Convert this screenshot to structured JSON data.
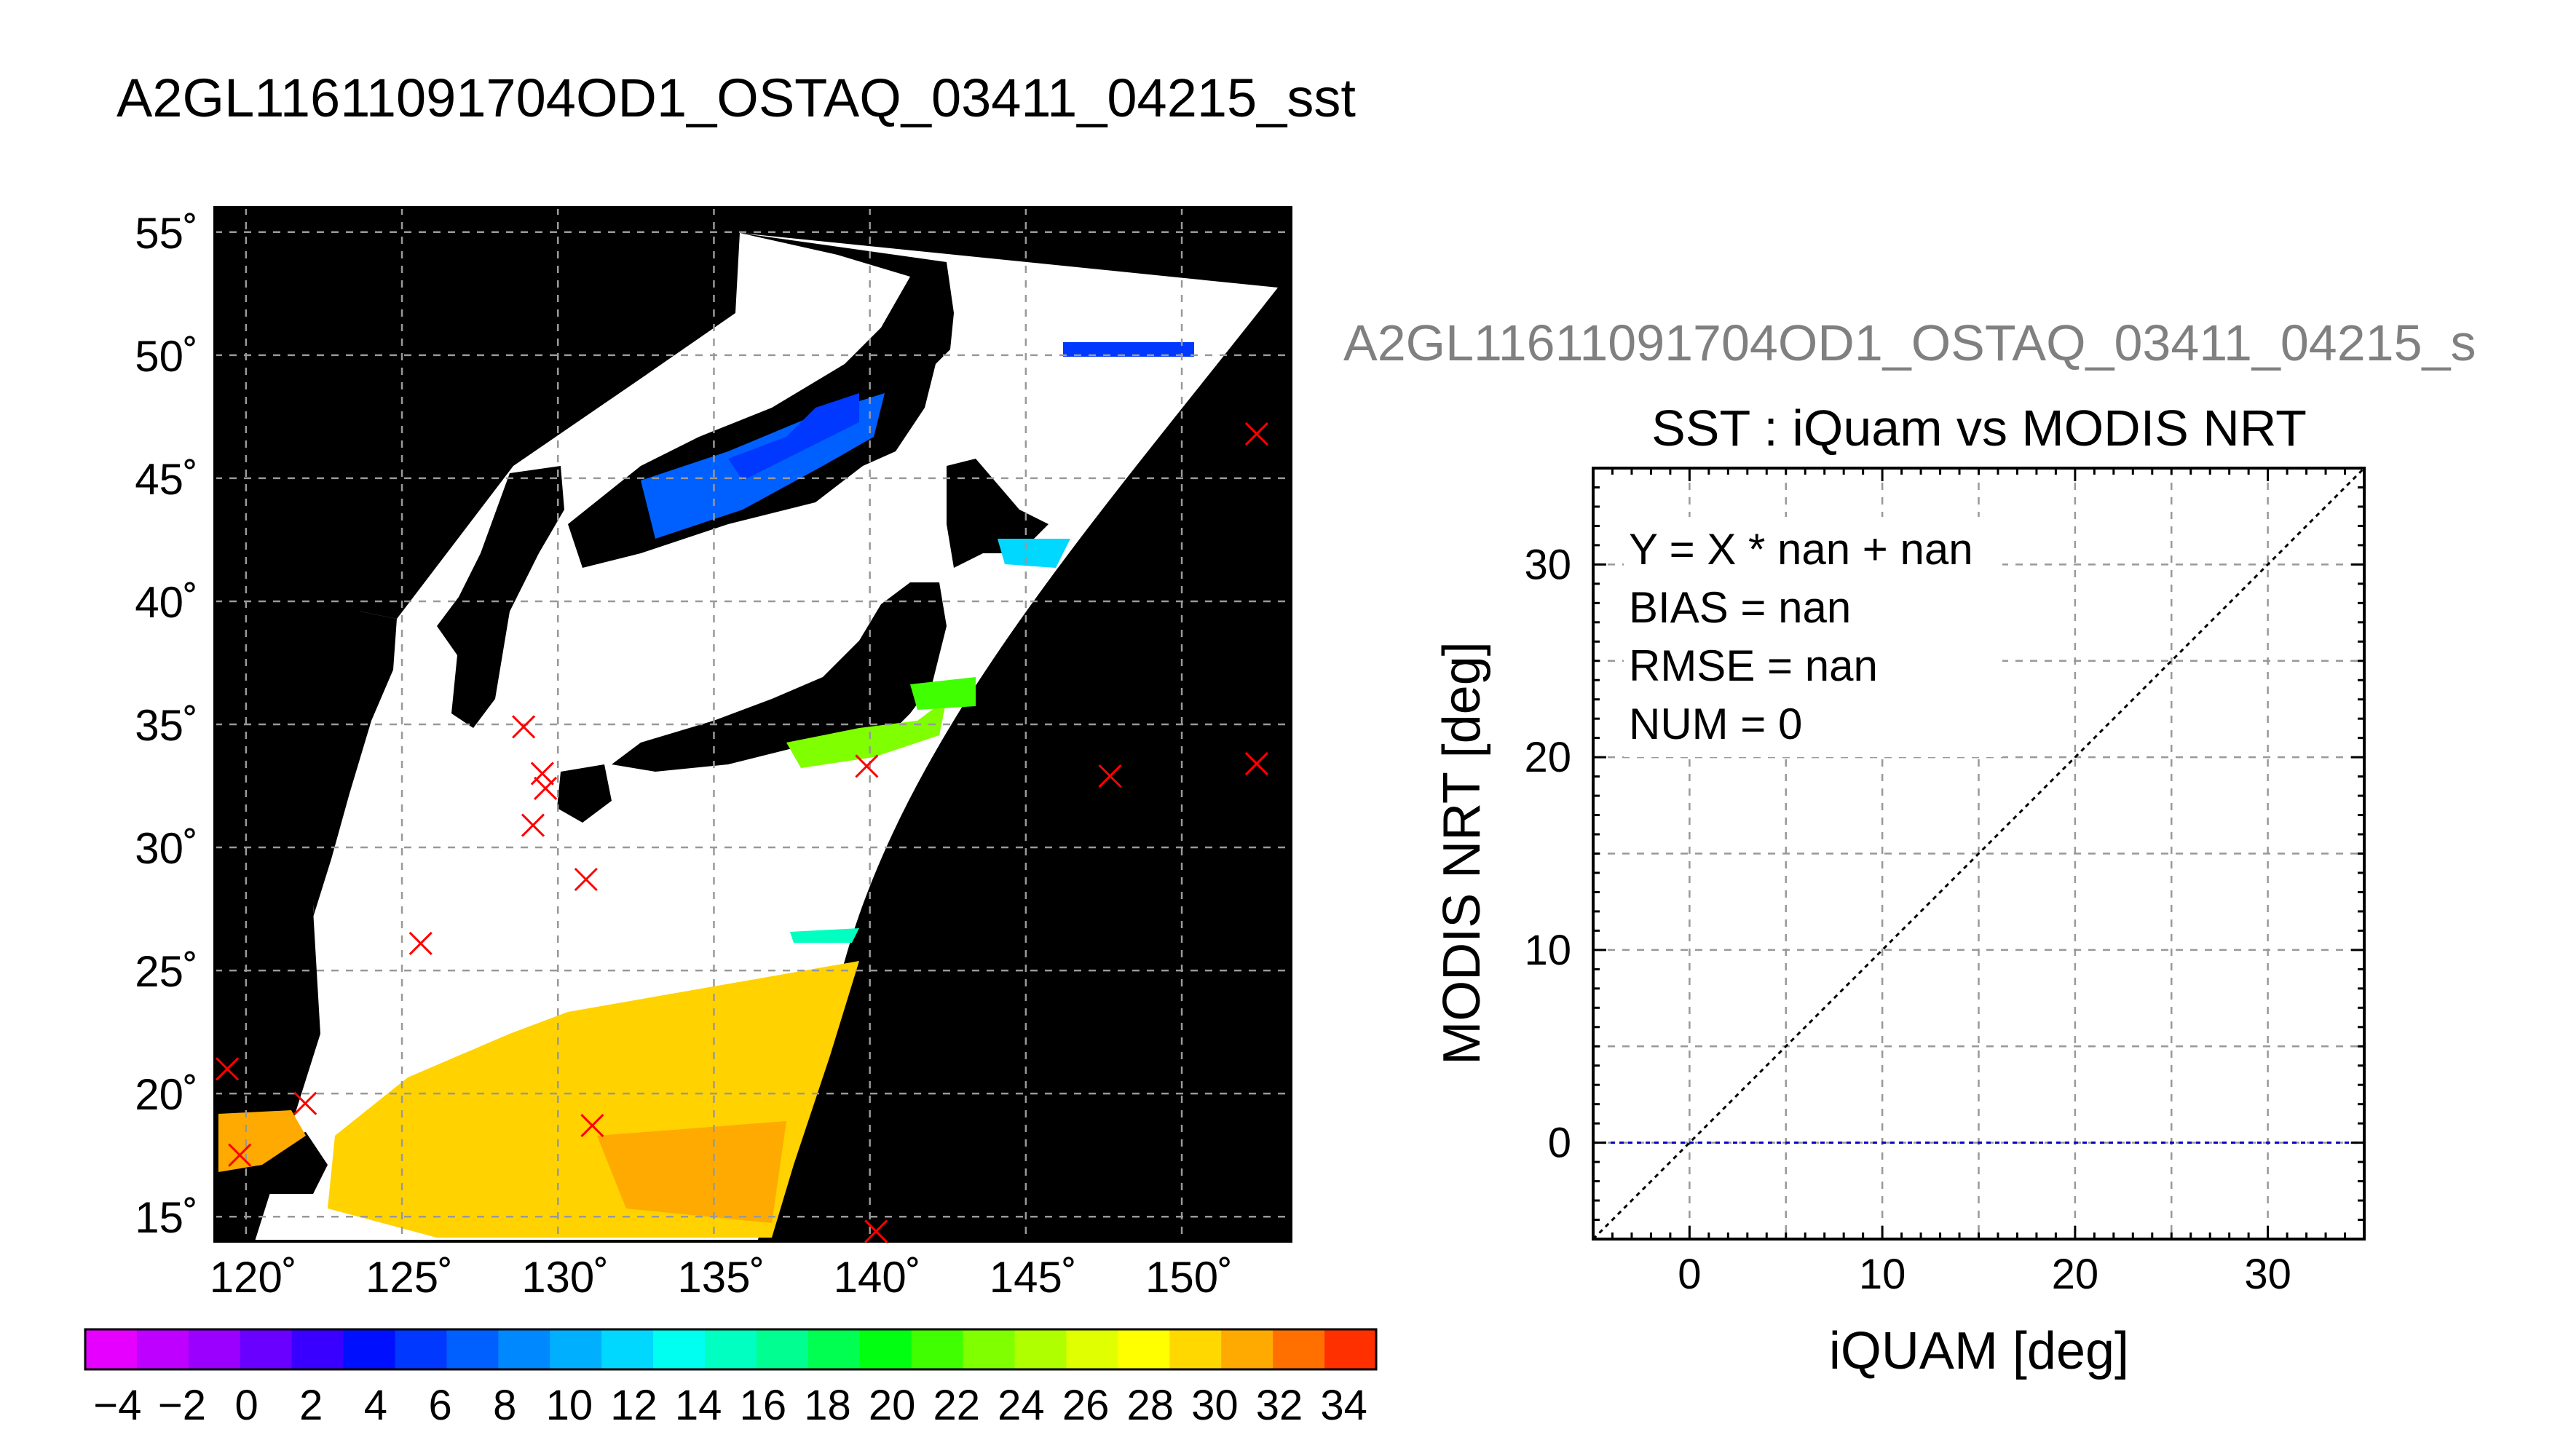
{
  "title": "A2GL11611091704OD1_OSTAQ_03411_04215_sst",
  "chart_data": [
    {
      "type": "heatmap",
      "subtype": "map",
      "title": "",
      "lon_ticks": [
        "120˚",
        "125˚",
        "130˚",
        "135˚",
        "140˚",
        "145˚",
        "150˚"
      ],
      "lat_ticks": [
        "55˚",
        "50˚",
        "45˚",
        "40˚",
        "35˚",
        "30˚",
        "25˚",
        "20˚",
        "15˚"
      ],
      "lon_range": [
        119,
        153.5
      ],
      "lat_range": [
        14,
        56
      ],
      "grid": true,
      "colorbar": {
        "tick_labels": [
          "−4",
          "−2",
          "0",
          "2",
          "4",
          "6",
          "8",
          "10",
          "12",
          "14",
          "16",
          "18",
          "20",
          "22",
          "24",
          "26",
          "28",
          "30",
          "32",
          "34"
        ],
        "range": [
          -5,
          35
        ],
        "colors": [
          "#e600ff",
          "#bd00ff",
          "#9b00ff",
          "#6a00ff",
          "#3a00ff",
          "#0010ff",
          "#0038ff",
          "#0060ff",
          "#0088ff",
          "#00b0ff",
          "#00d8ff",
          "#00fff0",
          "#00ffc0",
          "#00ff90",
          "#00ff50",
          "#00ff10",
          "#40ff00",
          "#80ff00",
          "#b0ff00",
          "#e0ff00",
          "#ffff00",
          "#ffd800",
          "#ffaa00",
          "#ff7000",
          "#ff3000"
        ]
      },
      "iquam_points": [
        {
          "lon": 119.4,
          "lat": 21.0
        },
        {
          "lon": 119.8,
          "lat": 17.5
        },
        {
          "lon": 121.9,
          "lat": 19.6
        },
        {
          "lon": 125.6,
          "lat": 26.1
        },
        {
          "lon": 128.9,
          "lat": 34.9
        },
        {
          "lon": 129.5,
          "lat": 33.0
        },
        {
          "lon": 129.6,
          "lat": 32.4
        },
        {
          "lon": 129.2,
          "lat": 30.9
        },
        {
          "lon": 130.9,
          "lat": 28.7
        },
        {
          "lon": 131.1,
          "lat": 18.7
        },
        {
          "lon": 139.9,
          "lat": 33.3
        },
        {
          "lon": 140.2,
          "lat": 14.4
        },
        {
          "lon": 147.7,
          "lat": 32.9
        },
        {
          "lon": 152.4,
          "lat": 46.8
        },
        {
          "lon": 152.4,
          "lat": 33.4
        }
      ],
      "marker_color": "#ff0000"
    },
    {
      "type": "scatter",
      "subtitle": "A2GL11611091704OD1_OSTAQ_03411_04215_s",
      "title": "SST : iQuam vs MODIS NRT",
      "xlabel": "iQUAM [deg]",
      "ylabel": "MODIS NRT [deg]",
      "xlim": [
        -5,
        35
      ],
      "ylim": [
        -5,
        35
      ],
      "xticks": [
        0,
        10,
        20,
        30
      ],
      "yticks": [
        0,
        10,
        20,
        30
      ],
      "grid": true,
      "annotations": [
        "Y = X * nan + nan",
        "BIAS = nan",
        "RMSE = nan",
        "NUM = 0"
      ],
      "points": [],
      "reference_lines": [
        {
          "name": "",
          "slope": 1,
          "intercept": 0,
          "style": "dotted",
          "color": "#000000"
        },
        {
          "name": "",
          "slope": 0,
          "intercept": 0,
          "style": "dashed",
          "color": "#0000cc"
        }
      ]
    }
  ]
}
